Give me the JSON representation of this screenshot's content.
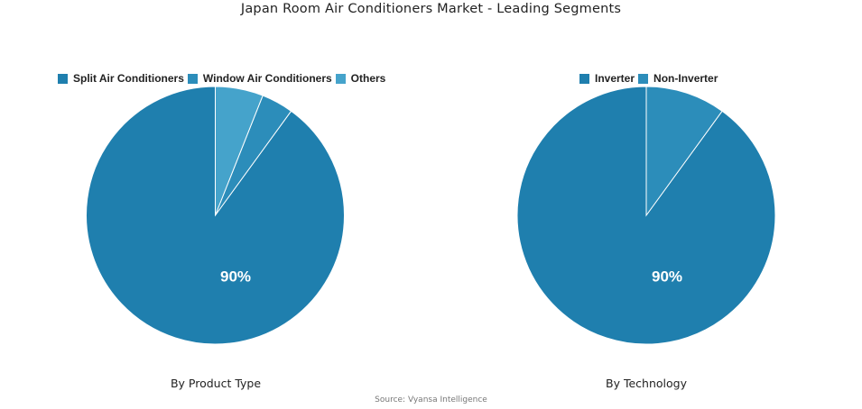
{
  "title": "Japan Room Air Conditioners Market - Leading Segments",
  "source": "Source: Vyansa Intelligence",
  "chart_data": [
    {
      "type": "pie",
      "subtitle": "By Product Type",
      "legend_position": "top",
      "slices": [
        {
          "name": "Split Air Conditioners",
          "value": 90,
          "label": "90%",
          "color": "#1f7fae"
        },
        {
          "name": "Window Air Conditioners",
          "value": 4,
          "label": "",
          "color": "#2c8dba"
        },
        {
          "name": "Others",
          "value": 6,
          "label": "",
          "color": "#45a3cb"
        }
      ]
    },
    {
      "type": "pie",
      "subtitle": "By Technology",
      "legend_position": "top",
      "slices": [
        {
          "name": "Inverter",
          "value": 90,
          "label": "90%",
          "color": "#1f7fae"
        },
        {
          "name": "Non-Inverter",
          "value": 10,
          "label": "",
          "color": "#2c8dba"
        }
      ]
    }
  ]
}
